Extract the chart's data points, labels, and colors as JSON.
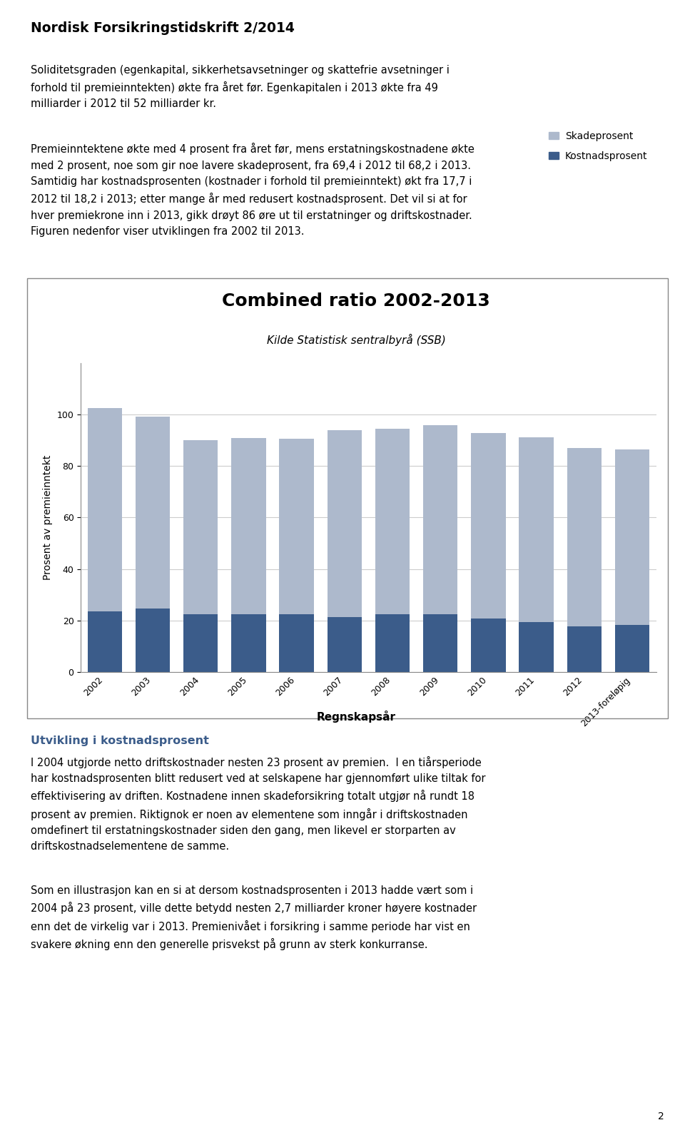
{
  "title": "Combined ratio 2002-2013",
  "subtitle": "Kilde Statistisk sentralbyrå (SSB)",
  "xlabel": "Regnskapsår",
  "ylabel": "Prosent av premieinntekt",
  "categories": [
    "2002",
    "2003",
    "2004",
    "2005",
    "2006",
    "2007",
    "2008",
    "2009",
    "2010",
    "2011",
    "2012",
    "2013-foreløpig"
  ],
  "skadeprosent": [
    79.0,
    74.5,
    67.8,
    68.5,
    68.3,
    72.5,
    72.3,
    73.5,
    72.0,
    71.8,
    69.4,
    68.2
  ],
  "kostnadsprosent": [
    23.5,
    24.6,
    22.4,
    22.5,
    22.3,
    21.4,
    22.3,
    22.4,
    20.8,
    19.5,
    17.7,
    18.2
  ],
  "skadeprosent_color": "#adb9cc",
  "kostnadsprosent_color": "#3b5c8a",
  "ylim": [
    0,
    120
  ],
  "yticks": [
    0,
    20,
    40,
    60,
    80,
    100
  ],
  "legend_skade": "Skadeprosent",
  "legend_kostnad": "Kostnadsprosent",
  "chart_bg": "#ffffff",
  "page_bg": "#ffffff",
  "border_color": "#888888",
  "grid_color": "#cccccc",
  "title_fontsize": 18,
  "subtitle_fontsize": 11,
  "axis_label_fontsize": 10,
  "tick_fontsize": 9,
  "legend_fontsize": 10,
  "header_text": "Nordisk Forsikringstidskrift 2/2014",
  "para1": "Soliditetsgraden (egenkapital, sikkerhetsavsetninger og skattefrie avsetninger i\nforhold til premieinntekten) økte fra året før. Egenkapitalen i 2013 økte fra 49\nmilliarder i 2012 til 52 milliarder kr.",
  "para2": "Premieinntektene økte med 4 prosent fra året før, mens erstatningskostnadene økte\nmed 2 prosent, noe som gir noe lavere skadeprosent, fra 69,4 i 2012 til 68,2 i 2013.\nSamtidig har kostnadsprosenten (kostnader i forhold til premieinntekt) økt fra 17,7 i\n2012 til 18,2 i 2013; etter mange år med redusert kostnadsprosent. Det vil si at for\nhver premiekrone inn i 2013, gikk drøyt 86 øre ut til erstatninger og driftskostnader.\nFiguren nedenfor viser utviklingen fra 2002 til 2013.",
  "section_header": "Utvikling i kostnadsprosent",
  "para3": "I 2004 utgjorde netto driftskostnader nesten 23 prosent av premien.  I en tiårsperiode\nhar kostnadsprosenten blitt redusert ved at selskapene har gjennomført ulike tiltak for\neffektivisering av driften. Kostnadene innen skadeforsikring totalt utgjør nå rundt 18\nprosent av premien. Riktignok er noen av elementene som inngår i driftskostnaden\nomdefinert til erstatningskostnader siden den gang, men likevel er storparten av\ndriftskostnadselementene de samme.",
  "para4": "Som en illustrasjon kan en si at dersom kostnadsprosenten i 2013 hadde vært som i\n2004 på 23 prosent, ville dette betydd nesten 2,7 milliarder kroner høyere kostnader\nenn det de virkelig var i 2013. Premienivået i forsikring i samme periode har vist en\nsvakere økning enn den generelle prisvekst på grunn av sterk konkurranse.",
  "page_number": "2"
}
